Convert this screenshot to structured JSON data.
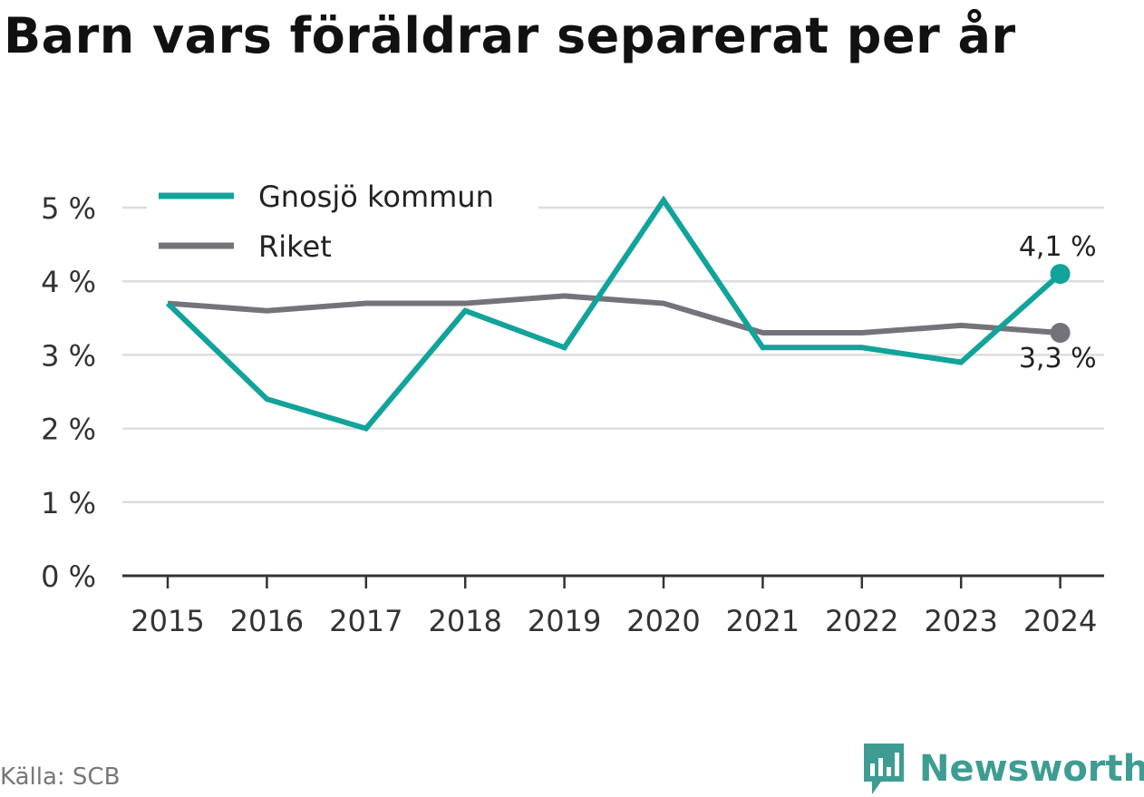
{
  "title": "Barn vars föräldrar separerat per år",
  "source": "Källa: SCB",
  "brand": {
    "name": "Newsworthy",
    "color": "#3e9c92"
  },
  "chart_data": {
    "type": "line",
    "categories": [
      "2015",
      "2016",
      "2017",
      "2018",
      "2019",
      "2020",
      "2021",
      "2022",
      "2023",
      "2024"
    ],
    "series": [
      {
        "name": "Gnosjö kommun",
        "color": "#12a39a",
        "values": [
          3.7,
          2.4,
          2.0,
          3.6,
          3.1,
          5.1,
          3.1,
          3.1,
          2.9,
          4.1
        ],
        "end_label": "4,1 %"
      },
      {
        "name": "Riket",
        "color": "#75737a",
        "values": [
          3.7,
          3.6,
          3.7,
          3.7,
          3.8,
          3.7,
          3.3,
          3.3,
          3.4,
          3.3
        ],
        "end_label": "3,3 %"
      }
    ],
    "yticks": [
      0,
      1,
      2,
      3,
      4,
      5
    ],
    "ytick_labels": [
      "0 %",
      "1 %",
      "2 %",
      "3 %",
      "4 %",
      "5 %"
    ],
    "ylim": [
      0,
      5
    ],
    "xlabel": "",
    "ylabel": "",
    "grid": true,
    "legend_position": "top-left"
  }
}
